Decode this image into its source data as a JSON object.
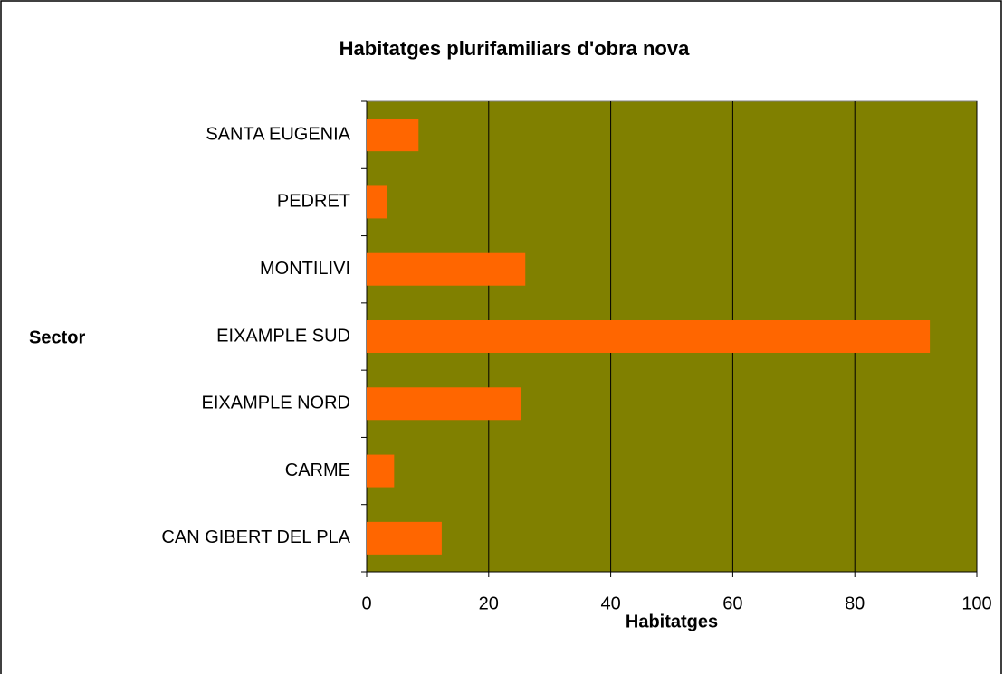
{
  "chart_data": {
    "type": "bar",
    "orientation": "horizontal",
    "title": "Habitatges plurifamiliars d'obra nova",
    "x_label": "Habitatges",
    "y_label": "Sector",
    "categories": [
      "SANTA EUGENIA",
      "PEDRET",
      "MONTILIVI",
      "EIXAMPLE SUD",
      "EIXAMPLE NORD",
      "CARME",
      "CAN GIBERT DEL PLA"
    ],
    "values": [
      8.5,
      3.3,
      26,
      92.3,
      25.3,
      4.5,
      12.3
    ],
    "color": "#ff6600",
    "background": "#808000",
    "xlim": [
      0,
      100
    ],
    "xticks": [
      0,
      20,
      40,
      60,
      80,
      100
    ],
    "grid": true
  }
}
